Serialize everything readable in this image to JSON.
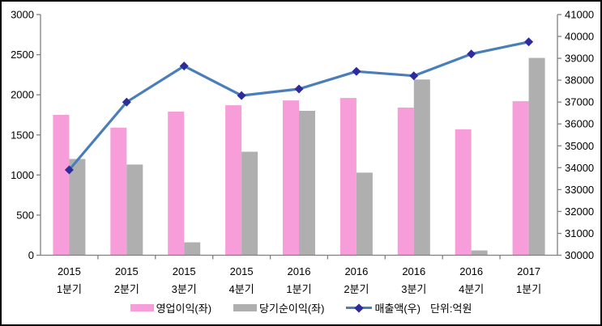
{
  "chart_data": {
    "type": "bar",
    "combo": "bar+line dual-axis",
    "title": "",
    "categories": [
      {
        "line1": "2015",
        "line2": "1분기"
      },
      {
        "line1": "2015",
        "line2": "2분기"
      },
      {
        "line1": "2015",
        "line2": "3분기"
      },
      {
        "line1": "2015",
        "line2": "4분기"
      },
      {
        "line1": "2016",
        "line2": "1분기"
      },
      {
        "line1": "2016",
        "line2": "2분기"
      },
      {
        "line1": "2016",
        "line2": "3분기"
      },
      {
        "line1": "2016",
        "line2": "4분기"
      },
      {
        "line1": "2017",
        "line2": "1분기"
      }
    ],
    "series": [
      {
        "name": "영업이익(좌)",
        "type": "bar",
        "axis": "left",
        "color": "#F79DD9",
        "values": [
          1750,
          1590,
          1790,
          1870,
          1930,
          1960,
          1840,
          1570,
          1920
        ]
      },
      {
        "name": "당기순이익(좌)",
        "type": "bar",
        "axis": "left",
        "color": "#AFAFAF",
        "values": [
          1200,
          1130,
          160,
          1290,
          1800,
          1030,
          2190,
          60,
          2460
        ]
      },
      {
        "name": "매출액(우)",
        "type": "line",
        "axis": "right",
        "color": "#4A7EBB",
        "marker": "diamond",
        "marker_color": "#2E2B9E",
        "values": [
          33900,
          37000,
          38650,
          37300,
          37600,
          38400,
          38200,
          39200,
          39750
        ]
      }
    ],
    "left_axis": {
      "min": 0,
      "max": 3000,
      "step": 500
    },
    "right_axis": {
      "min": 30000,
      "max": 41000,
      "step": 1000
    },
    "legend": {
      "position": "bottom",
      "items": [
        {
          "label": "영업이익(좌)"
        },
        {
          "label": "당기순이익(좌)"
        },
        {
          "label": "매출액(우)"
        }
      ],
      "unit_note": "단위:억원"
    },
    "grid": false,
    "axis_color": "#808080",
    "text_color": "#000000",
    "background": "#FFFFFF"
  }
}
